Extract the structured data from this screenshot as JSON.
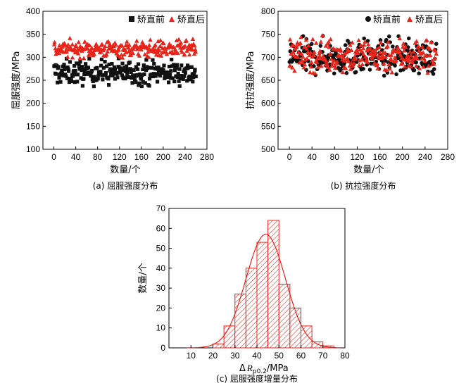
{
  "colors": {
    "before": "#111111",
    "after": "#e8251b",
    "hist_edge": "#e8251b",
    "curve": "#e8251b"
  },
  "chart_data": [
    {
      "type": "scatter",
      "caption": "(a) 屈服强度分布",
      "xlabel": "数量/个",
      "ylabel": "屈服强度/MPa",
      "xlim": [
        -20,
        280
      ],
      "ylim": [
        100,
        400
      ],
      "xticks": [
        0,
        40,
        80,
        120,
        160,
        200,
        240,
        280
      ],
      "yticks": [
        100,
        150,
        200,
        250,
        300,
        350,
        400
      ],
      "legend_position": "top-right",
      "series": [
        {
          "name": "矫直前",
          "marker": "square",
          "color_key": "before",
          "n": 260,
          "y_min": 235,
          "y_max": 300,
          "y_mean": 267
        },
        {
          "name": "矫直后",
          "marker": "triangle",
          "color_key": "after",
          "n": 260,
          "y_min": 298,
          "y_max": 342,
          "y_mean": 318
        }
      ]
    },
    {
      "type": "scatter",
      "caption": "(b) 抗拉强度分布",
      "xlabel": "数量/个",
      "ylabel": "抗拉强度/MPa",
      "xlim": [
        -20,
        280
      ],
      "ylim": [
        500,
        800
      ],
      "xticks": [
        0,
        40,
        80,
        120,
        160,
        200,
        240,
        280
      ],
      "yticks": [
        500,
        550,
        600,
        650,
        700,
        750,
        800
      ],
      "legend_position": "top-right",
      "series": [
        {
          "name": "矫直前",
          "marker": "circle",
          "color_key": "before",
          "n": 260,
          "y_min": 660,
          "y_max": 752,
          "y_mean": 700
        },
        {
          "name": "矫直后",
          "marker": "triangle",
          "color_key": "after",
          "n": 260,
          "y_min": 665,
          "y_max": 758,
          "y_mean": 705
        }
      ]
    },
    {
      "type": "bar",
      "subtype": "histogram",
      "caption": "(c) 屈服强度增量分布",
      "xlabel": "ΔRp0.2/MPa",
      "ylabel": "数量/个",
      "xlim": [
        0,
        80
      ],
      "ylim": [
        0,
        70
      ],
      "xticks": [
        10,
        20,
        30,
        40,
        50,
        60,
        70,
        80
      ],
      "yticks": [
        0,
        10,
        20,
        30,
        40,
        50,
        60,
        70
      ],
      "bin_width": 5,
      "bins": [
        {
          "start": 20,
          "value": 2
        },
        {
          "start": 25,
          "value": 11
        },
        {
          "start": 30,
          "value": 27
        },
        {
          "start": 35,
          "value": 40
        },
        {
          "start": 40,
          "value": 53
        },
        {
          "start": 45,
          "value": 64
        },
        {
          "start": 50,
          "value": 32
        },
        {
          "start": 55,
          "value": 20
        },
        {
          "start": 60,
          "value": 11
        },
        {
          "start": 65,
          "value": 3
        },
        {
          "start": 70,
          "value": 1
        }
      ],
      "normal_fit": {
        "mean": 44,
        "sd": 9,
        "peak": 57
      }
    }
  ]
}
